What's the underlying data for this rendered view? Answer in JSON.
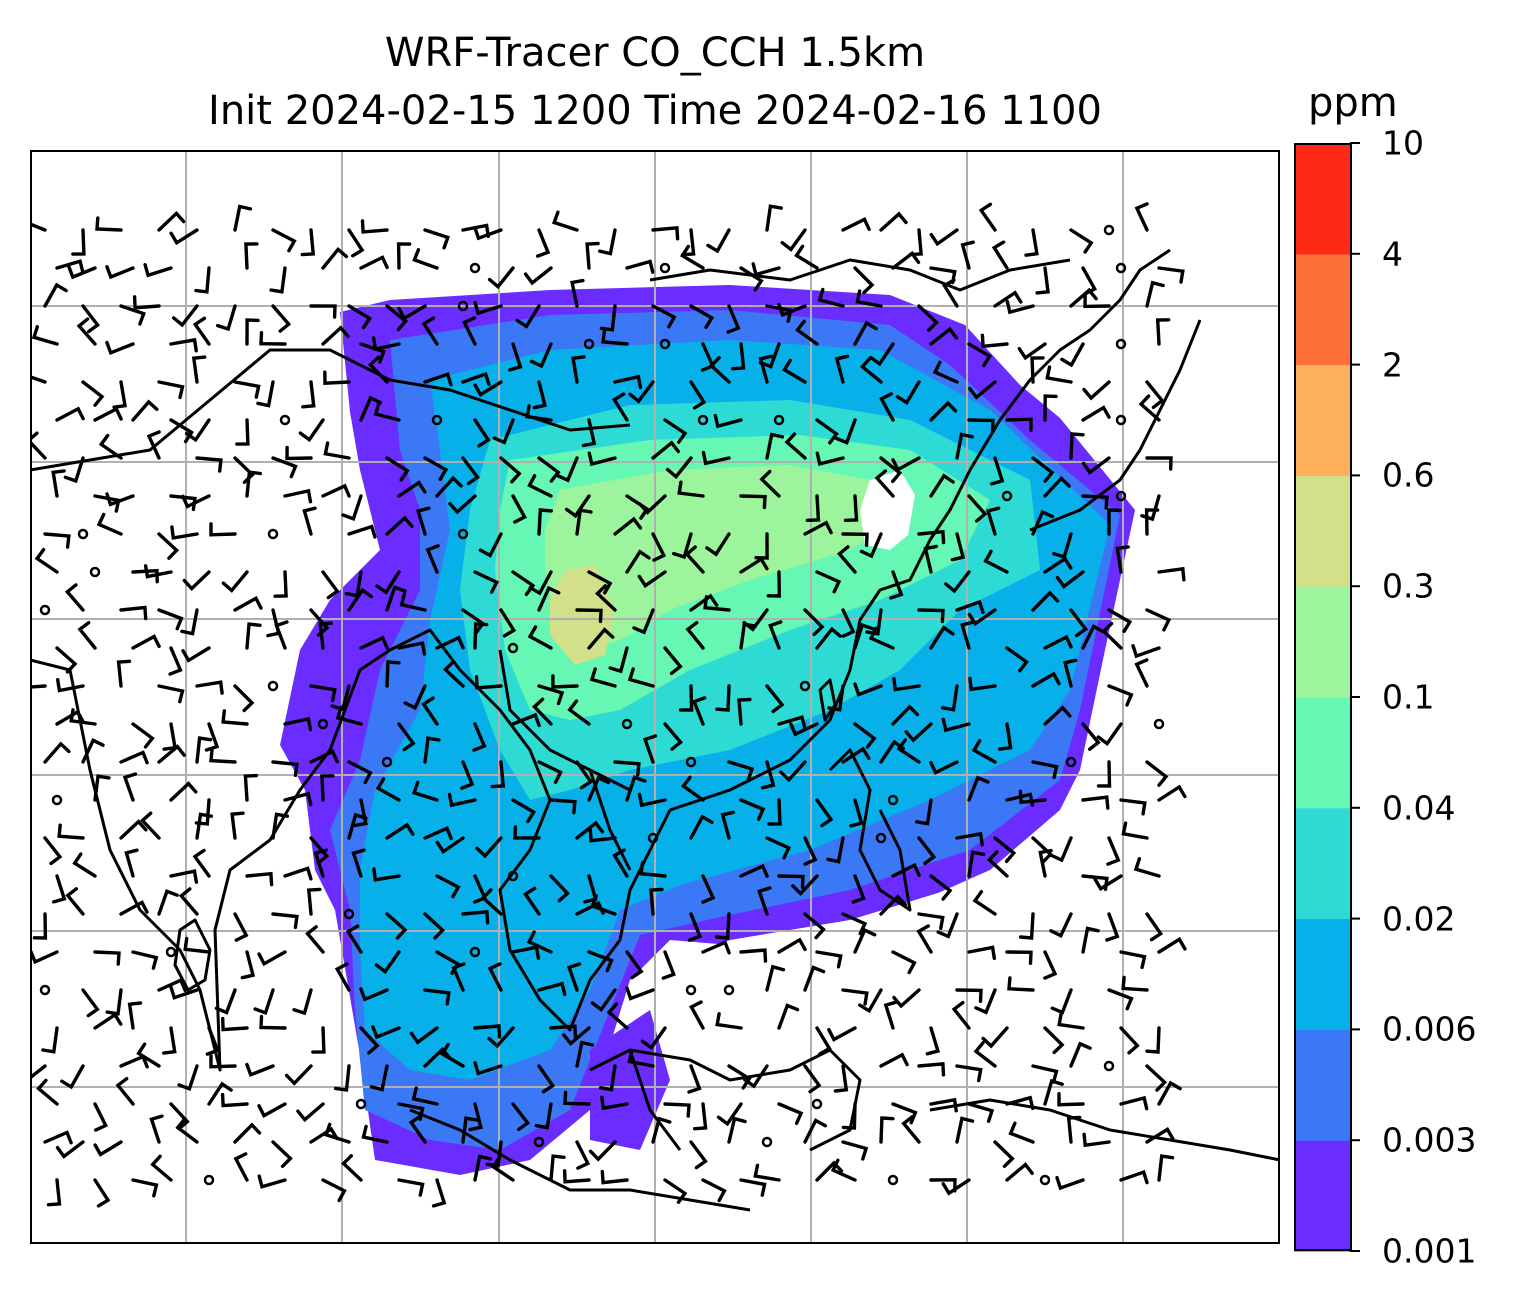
{
  "title": {
    "line1": "WRF-Tracer CO_CCH 1.5km",
    "line2": "Init 2024-02-15 1200 Time 2024-02-16 1100"
  },
  "colorbar": {
    "unit": "ppm",
    "levels": [
      "0.001",
      "0.003",
      "0.006",
      "0.02",
      "0.04",
      "0.1",
      "0.3",
      "0.6",
      "2",
      "4",
      "10"
    ],
    "colors": [
      "#6a2cff",
      "#3a78f5",
      "#08b0ea",
      "#2edbd4",
      "#66f7b4",
      "#9cf59c",
      "#d3e08a",
      "#ffb05c",
      "#ff7038",
      "#ff2a16"
    ]
  },
  "map": {
    "gridlines": true,
    "fill_field": "CO tracer concentration",
    "wind_barbs": true,
    "coastline_color": "#000000",
    "grid_color": "#b0b0b0"
  }
}
